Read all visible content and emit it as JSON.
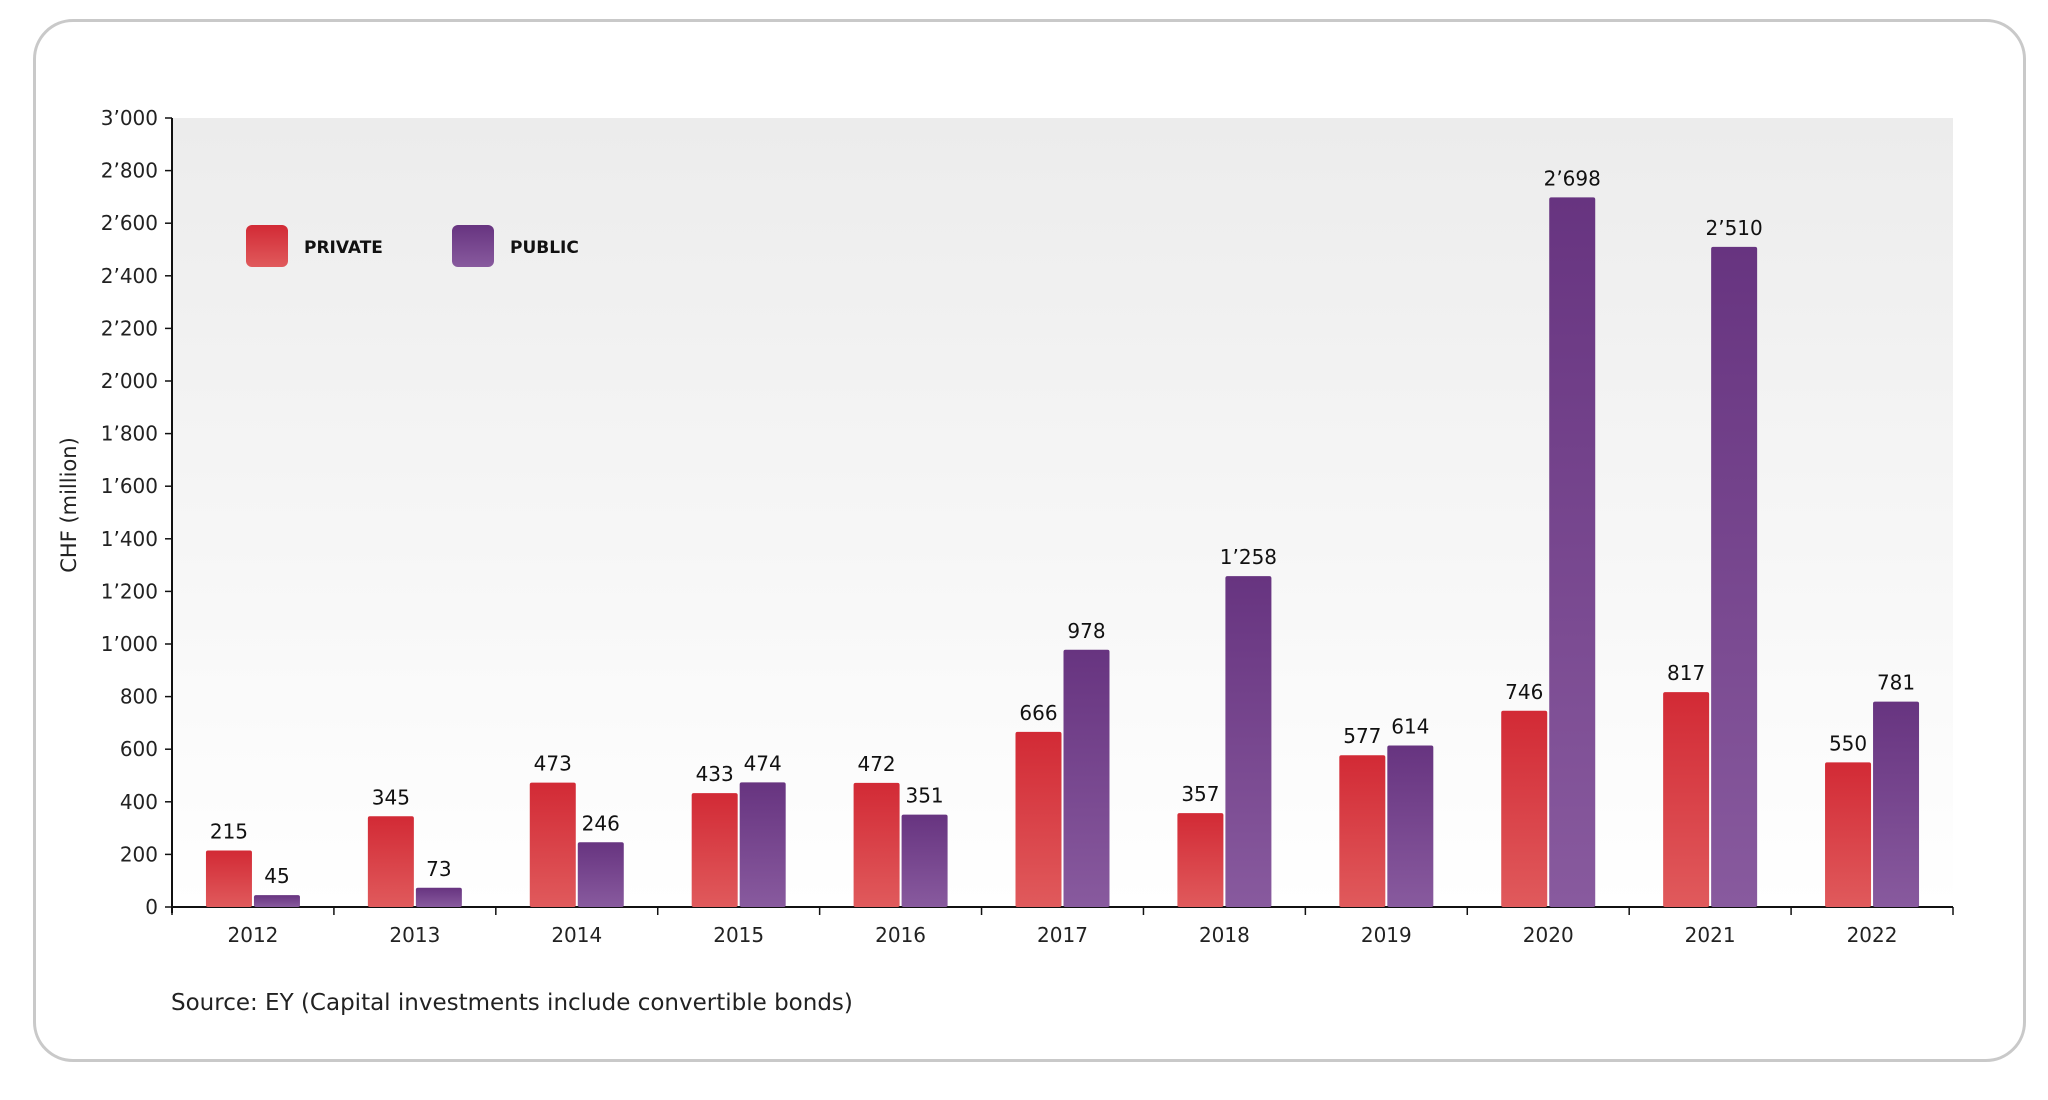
{
  "source_note": "Source: EY (Capital investments include convertible bonds)",
  "colors": {
    "private": "#d3303a",
    "public": "#6a3785"
  },
  "chart_data": {
    "type": "bar",
    "ylabel": "CHF (million)",
    "xlabel": "",
    "ylim": [
      0,
      3000
    ],
    "yticks": [
      0,
      200,
      400,
      600,
      800,
      1000,
      1200,
      1400,
      1600,
      1800,
      2000,
      2200,
      2400,
      2600,
      2800,
      3000
    ],
    "ytick_labels": [
      "0",
      "200",
      "400",
      "600",
      "800",
      "1’000",
      "1’200",
      "1’400",
      "1’600",
      "1’800",
      "2’000",
      "2’200",
      "2’400",
      "2’600",
      "2’800",
      "3’000"
    ],
    "categories": [
      "2012",
      "2013",
      "2014",
      "2015",
      "2016",
      "2017",
      "2018",
      "2019",
      "2020",
      "2021",
      "2022"
    ],
    "legend_position": "top-left",
    "series": [
      {
        "name": "PRIVATE",
        "values": [
          215,
          345,
          473,
          433,
          472,
          666,
          357,
          577,
          746,
          817,
          550
        ],
        "labels": [
          "215",
          "345",
          "473",
          "433",
          "472",
          "666",
          "357",
          "577",
          "746",
          "817",
          "550"
        ]
      },
      {
        "name": "PUBLIC",
        "values": [
          45,
          73,
          246,
          474,
          351,
          978,
          1258,
          614,
          2698,
          2510,
          781
        ],
        "labels": [
          "45",
          "73",
          "246",
          "474",
          "351",
          "978",
          "1’258",
          "614",
          "2’698",
          "2’510",
          "781"
        ]
      }
    ]
  }
}
